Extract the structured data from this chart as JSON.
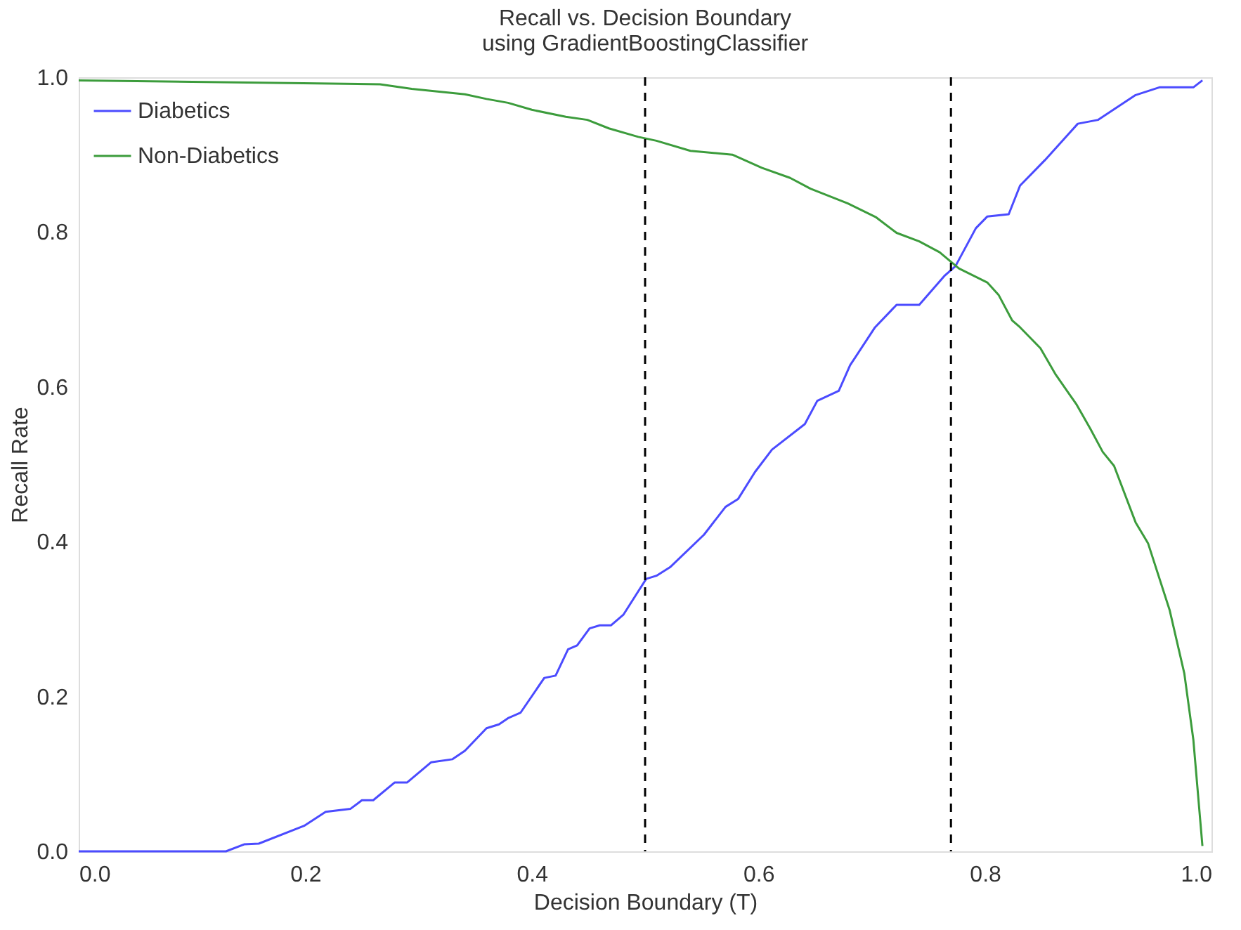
{
  "chart_data": {
    "type": "line",
    "title": "Recall vs. Decision Boundary",
    "subtitle": "using GradientBoostingClassifier",
    "xlabel": "Decision Boundary (T)",
    "ylabel": "Recall Rate",
    "xlim": [
      0,
      1
    ],
    "ylim": [
      0,
      1
    ],
    "xticks": [
      {
        "value": 0,
        "label": "0.0"
      },
      {
        "value": 0.2,
        "label": "0.2"
      },
      {
        "value": 0.4,
        "label": "0.4"
      },
      {
        "value": 0.6,
        "label": "0.6"
      },
      {
        "value": 0.8,
        "label": "0.8"
      },
      {
        "value": 1,
        "label": "1.0"
      }
    ],
    "yticks": [
      {
        "value": 0,
        "label": "0.0"
      },
      {
        "value": 0.2,
        "label": "0.2"
      },
      {
        "value": 0.4,
        "label": "0.4"
      },
      {
        "value": 0.6,
        "label": "0.6"
      },
      {
        "value": 0.8,
        "label": "0.8"
      },
      {
        "value": 1,
        "label": "1.0"
      }
    ],
    "grid": false,
    "legend": "top left",
    "marker": "none",
    "line_style": "solid",
    "series": [
      {
        "name": "Diabetics",
        "color": "#4b4bff",
        "x": [
          0,
          0.13,
          0.146,
          0.159,
          0.199,
          0.218,
          0.24,
          0.25,
          0.26,
          0.279,
          0.29,
          0.311,
          0.33,
          0.341,
          0.36,
          0.371,
          0.379,
          0.39,
          0.411,
          0.421,
          0.432,
          0.44,
          0.451,
          0.46,
          0.47,
          0.481,
          0.494,
          0.501,
          0.51,
          0.522,
          0.552,
          0.571,
          0.582,
          0.597,
          0.612,
          0.641,
          0.652,
          0.671,
          0.681,
          0.703,
          0.722,
          0.742,
          0.764,
          0.774,
          0.792,
          0.802,
          0.821,
          0.831,
          0.853,
          0.882,
          0.9,
          0.933,
          0.954,
          0.984,
          0.992
        ],
        "values": [
          0,
          0,
          0.009,
          0.01,
          0.033,
          0.051,
          0.055,
          0.066,
          0.066,
          0.089,
          0.089,
          0.115,
          0.119,
          0.13,
          0.159,
          0.164,
          0.172,
          0.179,
          0.224,
          0.227,
          0.261,
          0.266,
          0.288,
          0.292,
          0.292,
          0.306,
          0.336,
          0.352,
          0.356,
          0.367,
          0.409,
          0.445,
          0.455,
          0.49,
          0.519,
          0.552,
          0.582,
          0.595,
          0.628,
          0.677,
          0.706,
          0.706,
          0.743,
          0.756,
          0.805,
          0.82,
          0.823,
          0.86,
          0.893,
          0.94,
          0.945,
          0.977,
          0.987,
          0.987,
          0.996
        ]
      },
      {
        "name": "Non-Diabetics",
        "color": "#3c9c3c",
        "x": [
          0,
          0.266,
          0.294,
          0.341,
          0.36,
          0.379,
          0.4,
          0.43,
          0.449,
          0.468,
          0.494,
          0.51,
          0.54,
          0.577,
          0.603,
          0.628,
          0.646,
          0.679,
          0.704,
          0.722,
          0.742,
          0.76,
          0.777,
          0.802,
          0.812,
          0.824,
          0.831,
          0.849,
          0.862,
          0.881,
          0.893,
          0.904,
          0.914,
          0.933,
          0.944,
          0.963,
          0.976,
          0.984,
          0.992
        ],
        "values": [
          0.996,
          0.991,
          0.985,
          0.978,
          0.972,
          0.967,
          0.958,
          0.949,
          0.945,
          0.934,
          0.923,
          0.918,
          0.905,
          0.9,
          0.883,
          0.87,
          0.856,
          0.837,
          0.819,
          0.799,
          0.788,
          0.774,
          0.753,
          0.735,
          0.719,
          0.686,
          0.677,
          0.65,
          0.617,
          0.577,
          0.546,
          0.516,
          0.498,
          0.425,
          0.398,
          0.312,
          0.23,
          0.144,
          0.007
        ]
      }
    ],
    "ref_lines": [
      {
        "axis": "x",
        "value": 0.5,
        "color": "#000000",
        "line_style": "dashed"
      },
      {
        "axis": "x",
        "value": 0.77,
        "color": "#000000",
        "line_style": "dashed"
      }
    ]
  }
}
